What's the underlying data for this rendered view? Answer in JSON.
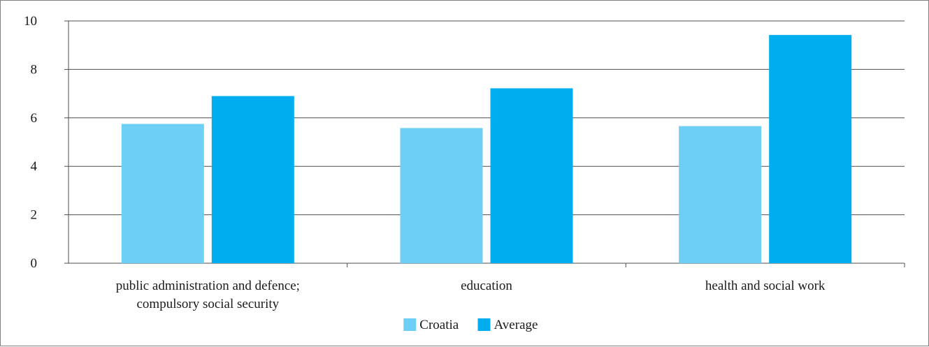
{
  "chart_data": {
    "type": "bar",
    "categories": [
      [
        "public administration and defence;",
        "compulsory social security"
      ],
      [
        "education"
      ],
      [
        "health and social work"
      ]
    ],
    "series": [
      {
        "name": "Croatia",
        "color": "#6dcff6",
        "values": [
          5.75,
          5.58,
          5.66
        ]
      },
      {
        "name": "Average",
        "color": "#00aeef",
        "values": [
          6.9,
          7.22,
          9.42
        ]
      }
    ],
    "ylim": [
      0,
      10
    ],
    "yticks": [
      0,
      2,
      4,
      6,
      8,
      10
    ],
    "grid": true,
    "legend_position": "bottom-center"
  }
}
